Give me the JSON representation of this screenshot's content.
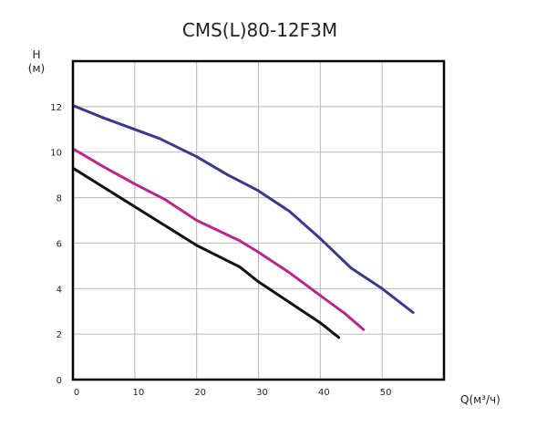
{
  "chart_data": {
    "type": "line",
    "title": "CMS(L)80-12F3M",
    "ylabel_line1": "H",
    "ylabel_line2": "(м)",
    "xlabel": "Q(м³/ч)",
    "xlim": [
      0,
      60
    ],
    "ylim": [
      0,
      14
    ],
    "xticks": [
      0,
      10,
      20,
      30,
      40,
      50
    ],
    "yticks": [
      0,
      2,
      4,
      6,
      8,
      10,
      12
    ],
    "x_grid_step": 10,
    "y_grid_step": 2,
    "grid": true,
    "series": [
      {
        "color": "#3a3a8c",
        "points": [
          [
            0,
            12.05
          ],
          [
            5,
            11.5
          ],
          [
            10,
            11.0
          ],
          [
            14,
            10.6
          ],
          [
            20,
            9.8
          ],
          [
            25,
            9.0
          ],
          [
            30,
            8.3
          ],
          [
            35,
            7.4
          ],
          [
            40,
            6.2
          ],
          [
            45,
            4.9
          ],
          [
            50,
            4.0
          ],
          [
            55,
            2.95
          ]
        ]
      },
      {
        "color": "#b8288c",
        "points": [
          [
            0,
            10.15
          ],
          [
            5,
            9.35
          ],
          [
            10,
            8.6
          ],
          [
            15,
            7.9
          ],
          [
            20,
            7.0
          ],
          [
            27,
            6.1
          ],
          [
            30,
            5.6
          ],
          [
            35,
            4.7
          ],
          [
            40,
            3.7
          ],
          [
            44,
            2.9
          ],
          [
            47,
            2.2
          ]
        ]
      },
      {
        "color": "#111111",
        "points": [
          [
            0,
            9.3
          ],
          [
            5,
            8.45
          ],
          [
            10,
            7.6
          ],
          [
            15,
            6.75
          ],
          [
            20,
            5.9
          ],
          [
            27,
            4.95
          ],
          [
            30,
            4.3
          ],
          [
            35,
            3.4
          ],
          [
            40,
            2.5
          ],
          [
            43,
            1.85
          ]
        ]
      }
    ]
  }
}
